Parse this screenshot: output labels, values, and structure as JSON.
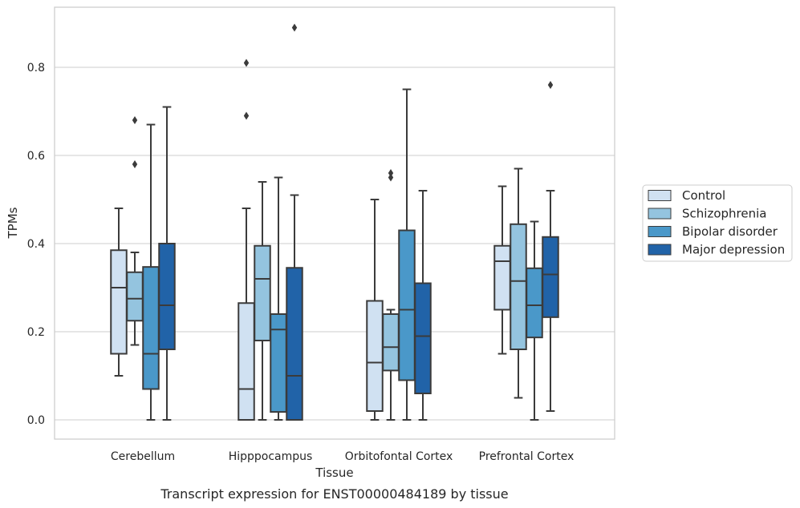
{
  "caption": "Transcript expression for ENST00000484189 by tissue",
  "chart_data": {
    "type": "box",
    "xlabel": "Tissue",
    "ylabel": "TPMs",
    "ylim": [
      -0.043,
      0.93
    ],
    "yticks": [
      0.0,
      0.2,
      0.4,
      0.6,
      0.8
    ],
    "ytick_labels": [
      "0.0",
      "0.2",
      "0.4",
      "0.6",
      "0.8"
    ],
    "grid": "horizontal",
    "legend_position": "right",
    "categories": [
      "Cerebellum",
      "Hipppocampus",
      "Orbitofontal Cortex",
      "Prefrontal Cortex"
    ],
    "colors": [
      "#d0e1f2",
      "#94c4df",
      "#4a98c9",
      "#2163a8"
    ],
    "series": [
      {
        "name": "Control",
        "boxes": [
          {
            "whislo": 0.1,
            "q1": 0.15,
            "med": 0.3,
            "q3": 0.385,
            "whishi": 0.48,
            "fliers": []
          },
          {
            "whislo": 0.0,
            "q1": 0.0,
            "med": 0.07,
            "q3": 0.265,
            "whishi": 0.48,
            "fliers": [
              0.69,
              0.81
            ]
          },
          {
            "whislo": 0.0,
            "q1": 0.02,
            "med": 0.13,
            "q3": 0.27,
            "whishi": 0.5,
            "fliers": []
          },
          {
            "whislo": 0.15,
            "q1": 0.25,
            "med": 0.36,
            "q3": 0.395,
            "whishi": 0.53,
            "fliers": []
          }
        ]
      },
      {
        "name": "Schizophrenia",
        "boxes": [
          {
            "whislo": 0.17,
            "q1": 0.225,
            "med": 0.275,
            "q3": 0.335,
            "whishi": 0.38,
            "fliers": [
              0.58,
              0.68
            ]
          },
          {
            "whislo": 0.0,
            "q1": 0.18,
            "med": 0.32,
            "q3": 0.395,
            "whishi": 0.54,
            "fliers": []
          },
          {
            "whislo": 0.0,
            "q1": 0.112,
            "med": 0.165,
            "q3": 0.24,
            "whishi": 0.25,
            "fliers": [
              0.55,
              0.56
            ]
          },
          {
            "whislo": 0.05,
            "q1": 0.16,
            "med": 0.315,
            "q3": 0.444,
            "whishi": 0.57,
            "fliers": []
          }
        ]
      },
      {
        "name": "Bipolar disorder",
        "boxes": [
          {
            "whislo": 0.0,
            "q1": 0.07,
            "med": 0.15,
            "q3": 0.347,
            "whishi": 0.67,
            "fliers": []
          },
          {
            "whislo": 0.0,
            "q1": 0.018,
            "med": 0.205,
            "q3": 0.24,
            "whishi": 0.55,
            "fliers": []
          },
          {
            "whislo": 0.0,
            "q1": 0.09,
            "med": 0.25,
            "q3": 0.43,
            "whishi": 0.75,
            "fliers": []
          },
          {
            "whislo": 0.0,
            "q1": 0.187,
            "med": 0.26,
            "q3": 0.344,
            "whishi": 0.45,
            "fliers": []
          }
        ]
      },
      {
        "name": "Major depression",
        "boxes": [
          {
            "whislo": 0.0,
            "q1": 0.16,
            "med": 0.26,
            "q3": 0.4,
            "whishi": 0.71,
            "fliers": []
          },
          {
            "whislo": 0.0,
            "q1": 0.0,
            "med": 0.1,
            "q3": 0.345,
            "whishi": 0.51,
            "fliers": [
              0.89
            ]
          },
          {
            "whislo": 0.0,
            "q1": 0.06,
            "med": 0.19,
            "q3": 0.31,
            "whishi": 0.52,
            "fliers": []
          },
          {
            "whislo": 0.02,
            "q1": 0.233,
            "med": 0.33,
            "q3": 0.415,
            "whishi": 0.52,
            "fliers": [
              0.76
            ]
          }
        ]
      }
    ]
  }
}
